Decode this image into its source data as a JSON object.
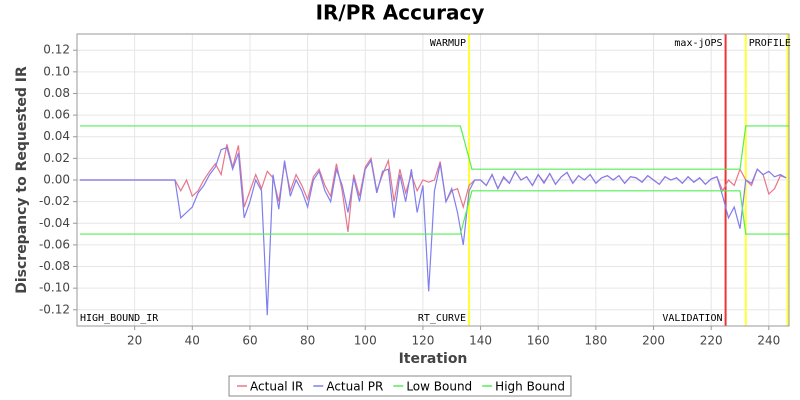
{
  "chart_data": {
    "type": "line",
    "title": "IR/PR Accuracy",
    "x_label": "Iteration",
    "y_label": "Discrepancy to Requested IR",
    "xlim": [
      0,
      247
    ],
    "ylim": [
      -0.135,
      0.135
    ],
    "xticks": [
      20,
      40,
      60,
      80,
      100,
      120,
      140,
      160,
      180,
      200,
      220,
      240
    ],
    "yticks": [
      -0.12,
      {
        "value": -0.1,
        "label": "-0.10"
      },
      -0.08,
      -0.06,
      -0.04,
      -0.02,
      {
        "value": 0,
        "label": "0.00"
      },
      0.02,
      0.04,
      0.06,
      0.08,
      {
        "value": 0.1,
        "label": "0.10"
      },
      0.12
    ],
    "grid": true,
    "legend": "bottom",
    "x": [
      1,
      34,
      36,
      38,
      40,
      42,
      44,
      46,
      48,
      50,
      52,
      54,
      56,
      58,
      60,
      62,
      64,
      66,
      68,
      70,
      72,
      74,
      76,
      78,
      80,
      82,
      84,
      86,
      88,
      90,
      92,
      94,
      96,
      98,
      100,
      102,
      104,
      106,
      108,
      110,
      112,
      114,
      116,
      118,
      120,
      122,
      124,
      126,
      128,
      130,
      132,
      134,
      136,
      138,
      140,
      142,
      144,
      146,
      148,
      150,
      152,
      154,
      156,
      158,
      160,
      162,
      164,
      166,
      168,
      170,
      172,
      174,
      176,
      178,
      180,
      182,
      184,
      186,
      188,
      190,
      192,
      194,
      196,
      198,
      200,
      202,
      204,
      206,
      208,
      210,
      212,
      214,
      216,
      218,
      220,
      222,
      224,
      226,
      228,
      230,
      232,
      234,
      236,
      238,
      240,
      242,
      244,
      246
    ],
    "series": [
      {
        "name": "Actual IR",
        "color": "#e8758c",
        "values": [
          0,
          0,
          -0.01,
          0,
          -0.015,
          -0.01,
          0,
          0.008,
          0.015,
          0.005,
          0.033,
          0.012,
          0.032,
          -0.025,
          -0.01,
          0.005,
          -0.008,
          0.008,
          0.002,
          -0.02,
          0.015,
          -0.01,
          0.005,
          -0.005,
          -0.018,
          0.003,
          0.01,
          -0.005,
          -0.015,
          0.015,
          -0.01,
          -0.048,
          0.005,
          -0.015,
          0.012,
          0.02,
          -0.01,
          0.005,
          0.018,
          -0.02,
          0.01,
          -0.012,
          0.005,
          -0.01,
          0,
          -0.002,
          0,
          0.017,
          -0.02,
          -0.01,
          -0.008,
          -0.025,
          -0.005,
          0,
          0,
          -0.005,
          0.005,
          -0.008,
          0.002,
          -0.003,
          0.008,
          0,
          0.003,
          -0.005,
          0.005,
          -0.002,
          0.006,
          -0.004,
          0.003,
          0.007,
          -0.003,
          0.004,
          0,
          0.005,
          -0.003,
          0.002,
          0.004,
          0,
          0.004,
          -0.003,
          0.003,
          0.002,
          -0.002,
          0.004,
          0,
          -0.004,
          0.003,
          0,
          0.002,
          -0.003,
          0.003,
          -0.002,
          0.002,
          -0.004,
          0.001,
          0.003,
          -0.01,
          0,
          -0.005,
          0.01,
          0,
          -0.005,
          0.01,
          0.005,
          -0.013,
          -0.008,
          0.004,
          0.002
        ]
      },
      {
        "name": "Actual PR",
        "color": "#7f7fef",
        "values": [
          0,
          0,
          -0.035,
          -0.03,
          -0.025,
          -0.012,
          -0.005,
          0.005,
          0.012,
          0.028,
          0.03,
          0.01,
          0.025,
          -0.035,
          -0.02,
          0,
          -0.01,
          -0.125,
          0.005,
          -0.027,
          0.018,
          -0.015,
          0,
          -0.01,
          -0.025,
          0,
          0.008,
          -0.01,
          -0.02,
          0.01,
          -0.005,
          -0.03,
          0.002,
          -0.02,
          0.01,
          0.018,
          -0.012,
          0.008,
          0.01,
          -0.035,
          0.005,
          -0.02,
          0.01,
          -0.03,
          -0.005,
          -0.103,
          -0.01,
          0.015,
          -0.02,
          -0.008,
          -0.03,
          -0.06,
          -0.01,
          0,
          0,
          -0.005,
          0.005,
          -0.008,
          0.003,
          -0.003,
          0.008,
          0,
          0.003,
          -0.005,
          0.005,
          -0.003,
          0.006,
          -0.004,
          0.003,
          0.007,
          -0.003,
          0.004,
          0,
          0.005,
          -0.003,
          0.002,
          0.004,
          0,
          0.004,
          -0.003,
          0.003,
          0.002,
          -0.002,
          0.004,
          0,
          -0.004,
          0.003,
          0,
          0.002,
          -0.003,
          0.003,
          -0.002,
          0.002,
          -0.004,
          0.001,
          0.003,
          -0.015,
          -0.035,
          -0.025,
          -0.045,
          0,
          -0.003,
          0.01,
          0.005,
          0.008,
          0.003,
          0.005,
          0.002
        ]
      },
      {
        "name": "Low Bound",
        "color": "#55ee55",
        "x": [
          1,
          133,
          137,
          230,
          232,
          247
        ],
        "values": [
          -0.05,
          -0.05,
          -0.01,
          -0.01,
          -0.05,
          -0.05
        ]
      },
      {
        "name": "High Bound",
        "color": "#55ee55",
        "x": [
          1,
          133,
          137,
          230,
          232,
          247
        ],
        "values": [
          0.05,
          0.05,
          0.01,
          0.01,
          0.05,
          0.05
        ]
      }
    ],
    "markers": [
      {
        "x": 136,
        "color": "#ffff33"
      },
      {
        "x": 225,
        "color": "#ee3333"
      },
      {
        "x": 232,
        "color": "#ffff33"
      },
      {
        "x": 246.5,
        "color": "#ffff33"
      }
    ],
    "annotations": [
      {
        "text": "HIGH_BOUND_IR",
        "x": 0,
        "position": "bottom",
        "align": "start"
      },
      {
        "text": "WARMUP",
        "x": 136,
        "position": "top",
        "align": "end"
      },
      {
        "text": "RT_CURVE",
        "x": 136,
        "position": "bottom",
        "align": "end"
      },
      {
        "text": "max-jOPS",
        "x": 225,
        "position": "top",
        "align": "end"
      },
      {
        "text": "VALIDATION",
        "x": 225,
        "position": "bottom",
        "align": "end"
      },
      {
        "text": "PROFILE",
        "x": 232,
        "position": "top",
        "align": "start"
      }
    ]
  }
}
